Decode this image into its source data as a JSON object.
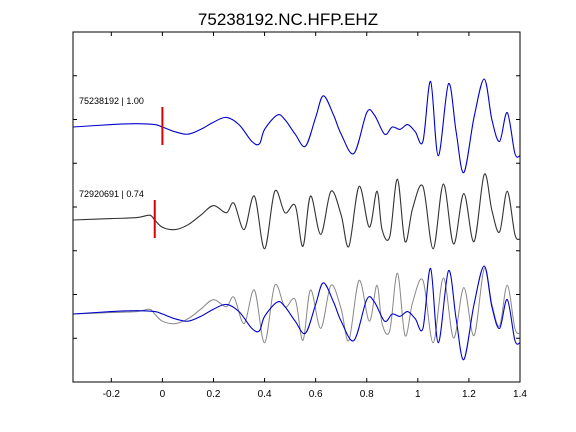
{
  "chart_data": {
    "type": "line",
    "title": "75238192.NC.HFP.EHZ",
    "xlabel": "",
    "ylabel": "",
    "xlim": [
      -0.35,
      1.4
    ],
    "x_ticks": [
      -0.2,
      0,
      0.2,
      0.4,
      0.6,
      0.8,
      1,
      1.2,
      1.4
    ],
    "x_tick_labels": [
      "-0.2",
      "0",
      "0.2",
      "0.4",
      "0.6",
      "0.8",
      "1",
      "1.2",
      "1.4"
    ],
    "y_tick_count": 7,
    "grid": false,
    "legend": "none",
    "colors": {
      "master": "#0000cc",
      "correlated": "#333333",
      "overlay_gray": "#888888",
      "pick": "#dd0000",
      "axes": "#000000"
    },
    "traces": [
      {
        "label": "75238192 | 1.00",
        "color": "#0000cc",
        "pick_time": 0.0,
        "x": [
          -0.35,
          -0.2,
          -0.1,
          -0.03,
          0.0,
          0.05,
          0.1,
          0.15,
          0.2,
          0.25,
          0.3,
          0.35,
          0.38,
          0.4,
          0.45,
          0.48,
          0.52,
          0.56,
          0.6,
          0.63,
          0.67,
          0.7,
          0.75,
          0.8,
          0.83,
          0.87,
          0.9,
          0.93,
          0.96,
          0.99,
          1.02,
          1.05,
          1.08,
          1.12,
          1.15,
          1.18,
          1.22,
          1.26,
          1.29,
          1.32,
          1.35,
          1.38,
          1.4
        ],
        "y": [
          0,
          0.05,
          0.07,
          0.05,
          0.0,
          -0.1,
          -0.15,
          -0.05,
          0.1,
          0.2,
          0.05,
          -0.3,
          -0.35,
          -0.05,
          0.25,
          0.15,
          -0.15,
          -0.4,
          0.2,
          0.65,
          0.25,
          -0.15,
          -0.55,
          0.3,
          0.25,
          -0.15,
          0.0,
          -0.05,
          0.05,
          -0.1,
          -0.3,
          0.95,
          -0.6,
          0.9,
          -0.1,
          -0.95,
          0.2,
          1.0,
          0.15,
          -0.3,
          0.3,
          -0.55,
          -0.6
        ]
      },
      {
        "label": "72920691 | 0.74",
        "color": "#333333",
        "pick_time": -0.03,
        "x": [
          -0.35,
          -0.2,
          -0.1,
          -0.05,
          -0.03,
          0.0,
          0.05,
          0.1,
          0.15,
          0.2,
          0.25,
          0.28,
          0.32,
          0.36,
          0.4,
          0.44,
          0.48,
          0.52,
          0.55,
          0.58,
          0.62,
          0.66,
          0.7,
          0.73,
          0.77,
          0.81,
          0.84,
          0.86,
          0.89,
          0.92,
          0.95,
          0.98,
          1.02,
          1.06,
          1.1,
          1.14,
          1.18,
          1.22,
          1.26,
          1.29,
          1.32,
          1.35,
          1.38,
          1.4
        ],
        "y": [
          0,
          0.03,
          0.05,
          0.1,
          0.0,
          -0.15,
          -0.2,
          -0.1,
          0.1,
          0.3,
          0.15,
          0.35,
          -0.2,
          0.5,
          -0.6,
          0.6,
          0.15,
          0.3,
          -0.55,
          0.5,
          -0.3,
          0.6,
          0.1,
          -0.55,
          0.7,
          -0.15,
          0.6,
          -0.2,
          -0.35,
          0.85,
          -0.45,
          0.25,
          0.7,
          -0.6,
          0.75,
          -0.5,
          0.55,
          -0.45,
          0.95,
          0.2,
          -0.25,
          0.6,
          -0.3,
          -0.4
        ]
      }
    ],
    "overlay": {
      "series": [
        {
          "name": "",
          "source_trace": 1,
          "color": "#888888"
        },
        {
          "name": "",
          "source_trace": 0,
          "color": "#0000cc"
        }
      ]
    }
  }
}
